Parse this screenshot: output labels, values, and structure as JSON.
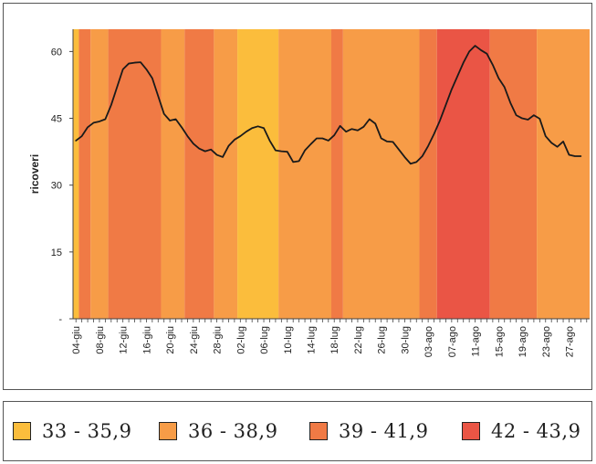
{
  "chart_data": {
    "type": "line",
    "ylabel": "ricoveri",
    "ylim": [
      0,
      65
    ],
    "yticks": [
      {
        "value": 0,
        "label": "-"
      },
      {
        "value": 15,
        "label": "15"
      },
      {
        "value": 30,
        "label": "30"
      },
      {
        "value": 45,
        "label": "45"
      },
      {
        "value": 60,
        "label": "60"
      }
    ],
    "x_start": "04-giu",
    "x_end": "30-ago",
    "xtick_labels": [
      "04-giu",
      "08-giu",
      "12-giu",
      "16-giu",
      "20-giu",
      "24-giu",
      "28-giu",
      "02-lug",
      "06-lug",
      "10-lug",
      "14-lug",
      "18-lug",
      "22-lug",
      "26-lug",
      "30-lug",
      "03-ago",
      "07-ago",
      "11-ago",
      "15-ago",
      "19-ago",
      "23-ago",
      "27-ago"
    ],
    "grid": false,
    "line_color": "#1a1a1a",
    "series": [
      {
        "name": "",
        "values": [
          40,
          41,
          43,
          44,
          44.3,
          44.8,
          48,
          52,
          56,
          57.3,
          57.5,
          57.6,
          56,
          54,
          50,
          46,
          44.5,
          44.8,
          43,
          41,
          39.3,
          38.2,
          37.6,
          38,
          36.8,
          36.3,
          38.8,
          40.2,
          41,
          42,
          42.8,
          43.2,
          42.8,
          40,
          37.8,
          37.6,
          37.5,
          35.2,
          35.4,
          37.8,
          39.2,
          40.5,
          40.5,
          40,
          41.2,
          43.3,
          42,
          42.6,
          42.3,
          43.1,
          44.8,
          43.8,
          40.5,
          39.8,
          39.7,
          38,
          36.3,
          34.8,
          35.2,
          36.5,
          38.8,
          41.5,
          44.5,
          48,
          51.5,
          54.5,
          57.5,
          60,
          61.3,
          60.3,
          59.5,
          57,
          54,
          52,
          48.5,
          45.7,
          45,
          44.7,
          45.7,
          44.9,
          41,
          39.5,
          38.6,
          39.8,
          36.8,
          36.5,
          36.5
        ]
      }
    ],
    "bands": [
      {
        "from": "04-giu",
        "to": "04-giu",
        "range": "33 - 35,9"
      },
      {
        "from": "05-giu",
        "to": "06-giu",
        "range": "39 - 41,9"
      },
      {
        "from": "07-giu",
        "to": "09-giu",
        "range": "36 - 38,9"
      },
      {
        "from": "10-giu",
        "to": "18-giu",
        "range": "39 - 41,9"
      },
      {
        "from": "19-giu",
        "to": "22-giu",
        "range": "36 - 38,9"
      },
      {
        "from": "23-giu",
        "to": "27-giu",
        "range": "39 - 41,9"
      },
      {
        "from": "28-giu",
        "to": "01-lug",
        "range": "36 - 38,9"
      },
      {
        "from": "02-lug",
        "to": "08-lug",
        "range": "33 - 35,9"
      },
      {
        "from": "09-lug",
        "to": "17-lug",
        "range": "36 - 38,9"
      },
      {
        "from": "18-lug",
        "to": "19-lug",
        "range": "39 - 41,9"
      },
      {
        "from": "20-lug",
        "to": "01-ago",
        "range": "36 - 38,9"
      },
      {
        "from": "02-ago",
        "to": "04-ago",
        "range": "39 - 41,9"
      },
      {
        "from": "05-ago",
        "to": "13-ago",
        "range": "42 - 43,9"
      },
      {
        "from": "14-ago",
        "to": "21-ago",
        "range": "39 - 41,9"
      },
      {
        "from": "22-ago",
        "to": "30-ago",
        "range": "36 - 38,9"
      }
    ]
  },
  "legend": [
    {
      "label": "33 - 35,9",
      "color": "#fbbd3c"
    },
    {
      "label": "36 - 38,9",
      "color": "#f79c47"
    },
    {
      "label": "39 - 41,9",
      "color": "#f07a45"
    },
    {
      "label": "42 - 43,9",
      "color": "#ea5545"
    }
  ]
}
